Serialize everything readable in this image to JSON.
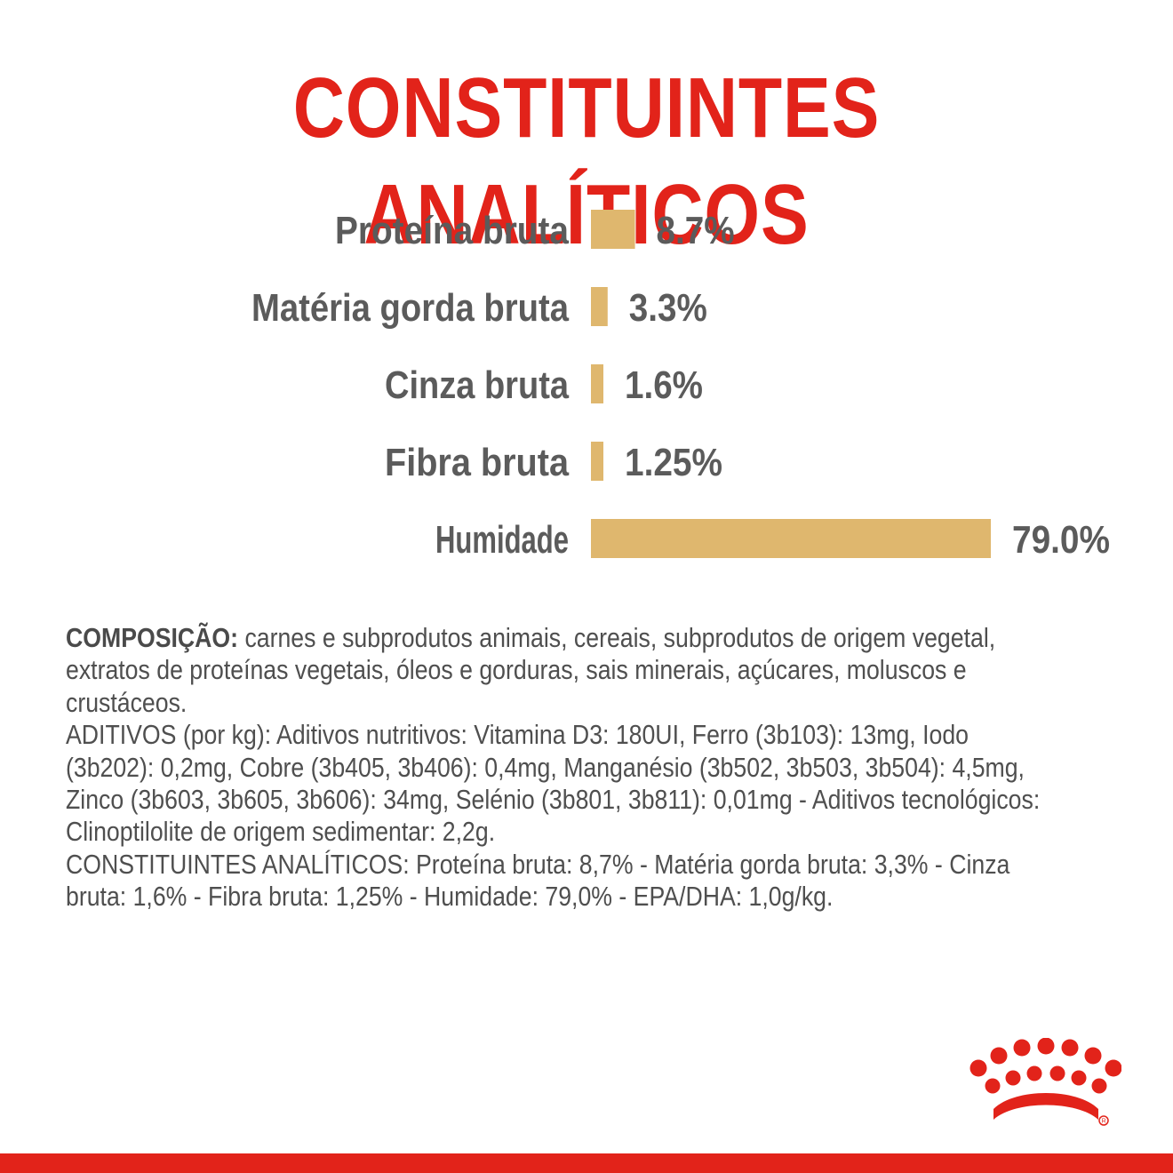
{
  "title": "CONSTITUINTES ANALÍTICOS",
  "colors": {
    "brand_red": "#e2231a",
    "bar": "#dfb76e",
    "text": "#5b5b5b"
  },
  "chart_data": {
    "type": "bar",
    "orientation": "horizontal",
    "title": "CONSTITUINTES ANALÍTICOS",
    "categories": [
      "Proteína bruta",
      "Matéria gorda bruta",
      "Cinza bruta",
      "Fibra bruta",
      "Humidade"
    ],
    "values": [
      8.7,
      3.3,
      1.6,
      1.25,
      79.0
    ],
    "value_labels": [
      "8.7%",
      "3.3%",
      "1.6%",
      "1.25%",
      "79.0%"
    ],
    "unit": "%",
    "grid": false,
    "legend": "none",
    "bar_color": "#dfb76e"
  },
  "composition": {
    "lead_label": "COMPOSIÇÃO:",
    "lead_text": " carnes e subprodutos animais, cereais, subprodutos de origem vegetal, extratos de proteínas vegetais, óleos e gorduras, sais minerais, açúcares, moluscos e crustáceos.",
    "additives": "ADITIVOS (por kg): Aditivos nutritivos: Vitamina D3: 180UI, Ferro (3b103): 13mg, Iodo (3b202): 0,2mg, Cobre (3b405, 3b406): 0,4mg, Manganésio (3b502, 3b503, 3b504): 4,5mg, Zinco (3b603, 3b605, 3b606): 34mg, Selénio (3b801, 3b811): 0,01mg - Aditivos tecnológicos: Clinoptilolite de origem sedimentar: 2,2g.",
    "analytical": "CONSTITUINTES ANALÍTICOS: Proteína bruta: 8,7% - Matéria gorda bruta: 3,3% - Cinza bruta: 1,6% - Fibra bruta: 1,25% - Humidade: 79,0% - EPA/DHA: 1,0g/kg."
  },
  "logo": {
    "icon": "royal-canin-crown-icon"
  }
}
